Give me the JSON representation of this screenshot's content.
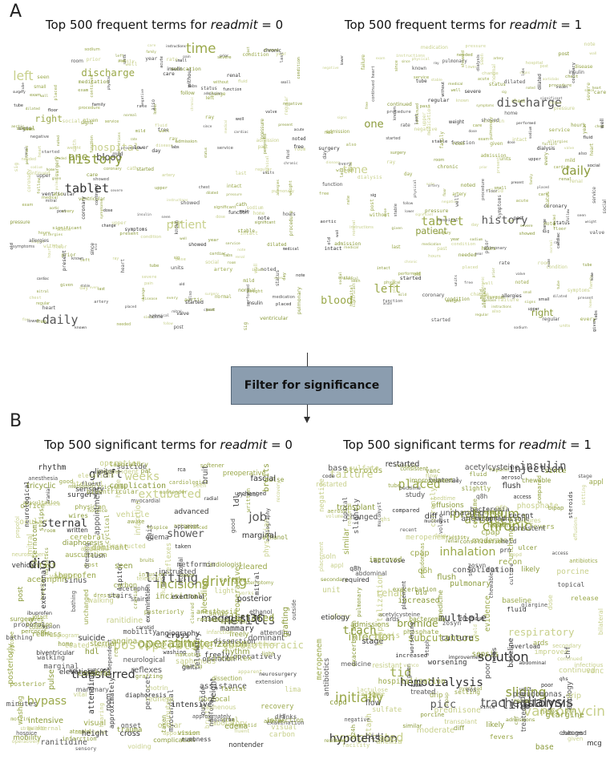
{
  "panel_a": {
    "letter": "A",
    "left_title_prefix": "Top 500 frequent terms for ",
    "left_title_var": "readmit",
    "left_title_suffix": " = 0",
    "right_title_prefix": "Top 500 frequent terms for ",
    "right_title_var": "readmit",
    "right_title_suffix": " = 1"
  },
  "panel_b": {
    "letter": "B",
    "left_title_prefix": "Top 500 significant terms for ",
    "left_title_var": "readmit",
    "left_title_suffix": " = 0",
    "right_title_prefix": "Top 500 significant terms for ",
    "right_title_var": "readmit",
    "right_title_suffix": " = 1"
  },
  "filter": {
    "label": "Filter for significance"
  },
  "colors": {
    "dark": "#333333",
    "olive": "#8a9a3a",
    "pale": "#c8d08c",
    "box": "#8b9daf"
  },
  "clouds": {
    "a_left": {
      "big": [
        "tablet",
        "patient",
        "discharge",
        "blood",
        "history",
        "one",
        "daily",
        "left",
        "right",
        "time",
        "hospital"
      ],
      "small": [
        "medication",
        "pain",
        "chest",
        "pressure",
        "normal",
        "admission",
        "disease",
        "showed",
        "day",
        "well",
        "artery",
        "status",
        "left",
        "follow",
        "last",
        "post",
        "prior",
        "continued",
        "given",
        "service",
        "procedure",
        "heart",
        "negative",
        "ventricular",
        "present",
        "past",
        "room",
        "units",
        "aortic",
        "valve",
        "needed",
        "lower",
        "mild",
        "since",
        "care",
        "exam",
        "home",
        "surgery",
        "tube",
        "fluid",
        "placed",
        "medical",
        "dilated",
        "stable",
        "upper",
        "pulmonary",
        "cardiac",
        "instructions",
        "condition",
        "family",
        "sodium",
        "allergies",
        "renal",
        "mitral",
        "physical",
        "cath",
        "intact",
        "insulin",
        "severe",
        "signs",
        "weight",
        "function",
        "wall",
        "coronary",
        "known",
        "labs",
        "chronic",
        "acute",
        "noted",
        "significant",
        "seen",
        "symptoms",
        "small",
        "started",
        "regular",
        "change",
        "also",
        "dose",
        "year",
        "old",
        "performed",
        "without",
        "ray",
        "free",
        "rate",
        "note",
        "sig",
        "every",
        "hours",
        "floor",
        "social"
      ]
    },
    "a_right": {
      "big": [
        "tablet",
        "patient",
        "discharge",
        "daily",
        "history",
        "one",
        "blood",
        "time",
        "left",
        "right"
      ],
      "small": [
        "medication",
        "hospital",
        "chest",
        "pressure",
        "normal",
        "admission",
        "disease",
        "showed",
        "day",
        "well",
        "artery",
        "status",
        "follow",
        "last",
        "post",
        "prior",
        "continued",
        "given",
        "service",
        "procedure",
        "heart",
        "negative",
        "renal",
        "present",
        "past",
        "room",
        "units",
        "aortic",
        "valve",
        "needed",
        "lower",
        "mild",
        "since",
        "care",
        "exam",
        "home",
        "surgery",
        "tube",
        "fluid",
        "placed",
        "medical",
        "dilated",
        "stable",
        "upper",
        "pulmonary",
        "cardiac",
        "instructions",
        "condition",
        "family",
        "sodium",
        "allergies",
        "failure",
        "insulin",
        "physical",
        "dialysis",
        "intact",
        "severe",
        "signs",
        "weight",
        "function",
        "wall",
        "coronary",
        "known",
        "labs",
        "chronic",
        "acute",
        "noted",
        "significant",
        "seen",
        "symptoms",
        "small",
        "started",
        "regular",
        "change",
        "also",
        "dose",
        "year",
        "old",
        "performed",
        "without",
        "ray",
        "free",
        "rate",
        "note",
        "sig",
        "every",
        "hours",
        "floor",
        "social"
      ]
    },
    "b_left": {
      "big": [
        "refills",
        "disp",
        "extubated",
        "operating",
        "dictated",
        "catheterization",
        "cardiothoracic",
        "medquist36",
        "postoperative",
        "transferred",
        "shower",
        "driving",
        "weeks",
        "job",
        "sternal",
        "bypass",
        "graft",
        "incisions",
        "lifting"
      ],
      "small": [
        "office",
        "drinks",
        "tricyclic",
        "syncope",
        "cerebral",
        "coated",
        "operatively",
        "onset",
        "sinus",
        "vital",
        "examination",
        "surgery",
        "cyclical",
        "voiding",
        "bathing",
        "radial",
        "angiography",
        "angina",
        "angiogram",
        "nontender",
        "recovery",
        "bruits",
        "percocet",
        "nonfocal",
        "rca",
        "apparent",
        "room",
        "freely",
        "ethanol",
        "rhythm",
        "elevations",
        "neurological",
        "saphenous",
        "atenolol",
        "appointment",
        "fluent",
        "posterior",
        "intensive",
        "ranitidine",
        "cranial",
        "marginal",
        "instructed",
        "incisional",
        "outside",
        "post",
        "edema",
        "pulse",
        "advanced",
        "operation",
        "mammary",
        "trauma",
        "ldl",
        "dominant",
        "strips",
        "lima",
        "hdl",
        "mitral",
        "physician",
        "washing",
        "sensory",
        "attending",
        "fascial",
        "suicide",
        "height",
        "gait",
        "dressing",
        "complication",
        "ibuprofen",
        "good",
        "cardiologist",
        "intact",
        "stairs",
        "propofol",
        "cleared",
        "reflexes",
        "telemetry",
        "injuries",
        "ocular",
        "pat",
        "myocardial",
        "auscultation",
        "posteriorly",
        "infarction",
        "awake",
        "grafting",
        "extension",
        "redness",
        "mobility",
        "works",
        "hospice",
        "lipitor",
        "carotid",
        "minutes",
        "vehicle",
        "narcotics",
        "sternotomy",
        "preoperative",
        "laboratory",
        "home",
        "neurosurgery",
        "wires",
        "circumflex",
        "written",
        "vision",
        "arteries",
        "light",
        "motrin",
        "hospice",
        "approximately",
        "diaphoresis",
        "acetmphn",
        "numbness",
        "walking",
        "softener",
        "infarction",
        "bleeding",
        "visual",
        "biventricular",
        "metformin",
        "hearing",
        "independent",
        "carbon",
        "anesthesia",
        "exertional",
        "bruit",
        "dissection",
        "cross",
        "flush",
        "taken",
        "unchanged",
        "assistance",
        "seen",
        "sternal"
      ]
    },
    "b_right": {
      "big": [
        "failure",
        "tracheostomy",
        "injection",
        "solution",
        "albuterol",
        "inhalation",
        "picc",
        "ipratropium",
        "trach",
        "chronic",
        "hemodialysis",
        "vancomycin",
        "insulin",
        "dialysis",
        "multiple",
        "complicated",
        "subcutaneous",
        "hypotension",
        "tid",
        "initially",
        "line",
        "bromide",
        "respiratory",
        "sliding",
        "rehab",
        "infection",
        "placed"
      ],
      "small": [
        "setting",
        "likely",
        "compared",
        "flush",
        "bid",
        "q8h",
        "consolidation",
        "unchanged",
        "ulcer",
        "continued",
        "aerosol",
        "bilateral",
        "worsening",
        "nebs",
        "improved",
        "effusions",
        "meropenem",
        "resistant",
        "slightly",
        "secondary",
        "pulmonary",
        "lasix",
        "fevers",
        "etiology",
        "recon",
        "tube",
        "sulfate",
        "treated",
        "unit",
        "appl",
        "chf",
        "infectious",
        "copd",
        "abdominal",
        "volume",
        "stage",
        "bacteremia",
        "medicine",
        "negative",
        "given",
        "currently",
        "moderate",
        "changed",
        "antibiotics",
        "lactulose",
        "study",
        "fluid",
        "soln",
        "prn",
        "heparin",
        "overload",
        "poor",
        "since",
        "renal",
        "culture",
        "cultures",
        "steroids",
        "acetylcysteine",
        "mucomyst",
        "code",
        "eos",
        "vanco",
        "staph",
        "bipap",
        "phosphate",
        "placement",
        "pseudomonas",
        "q6h",
        "anemia",
        "similar",
        "base",
        "drip",
        "recent",
        "admissions",
        "sepsis",
        "diff",
        "vanc",
        "mcg",
        "qhs",
        "required",
        "release",
        "baseline",
        "increased",
        "chewable",
        "porcine",
        "cpap",
        "glargine",
        "access",
        "exacerbation",
        "transplant",
        "topical",
        "q24h",
        "prednisone",
        "consistent",
        "zosyn",
        "flow",
        "cefepime",
        "ards",
        "hospitalization",
        "bedtime",
        "facility",
        "dose",
        "evidence",
        "restarted",
        "held",
        "improvement"
      ]
    }
  }
}
